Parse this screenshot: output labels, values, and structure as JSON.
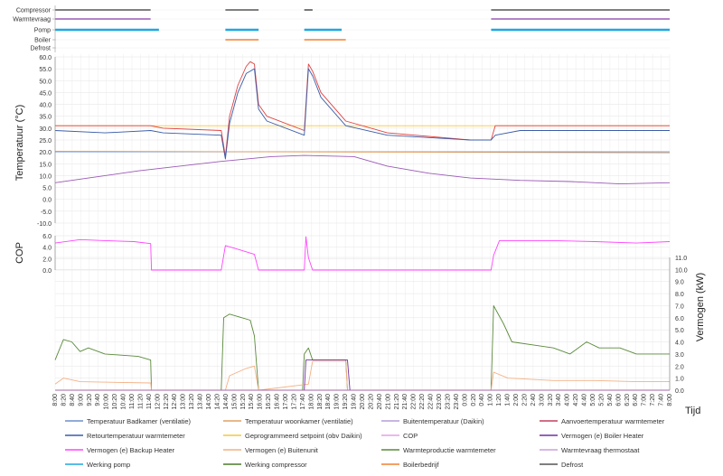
{
  "chart_data": {
    "type": "line",
    "xlabel": "Tijd",
    "x_ticks": [
      "8:00",
      "8:20",
      "8:40",
      "9:00",
      "9:20",
      "9:40",
      "10:00",
      "10:20",
      "10:40",
      "11:00",
      "11:20",
      "11:40",
      "12:00",
      "12:20",
      "12:40",
      "13:00",
      "13:20",
      "13:40",
      "14:00",
      "14:20",
      "14:40",
      "15:00",
      "15:20",
      "15:40",
      "16:00",
      "16:20",
      "16:40",
      "17:00",
      "17:20",
      "17:40",
      "18:00",
      "18:20",
      "18:40",
      "19:00",
      "19:20",
      "19:40",
      "20:00",
      "20:20",
      "20:40",
      "21:00",
      "21:20",
      "21:40",
      "22:00",
      "22:20",
      "22:40",
      "23:00",
      "23:20",
      "23:40",
      "0:00",
      "0:20",
      "0:40",
      "1:00",
      "1:20",
      "1:40",
      "2:00",
      "2:20",
      "2:40",
      "3:00",
      "3:20",
      "3:40",
      "4:00",
      "4:20",
      "4:40",
      "5:00",
      "5:20",
      "5:40",
      "6:00",
      "6:20",
      "6:40",
      "7:00",
      "7:20",
      "7:40",
      "8:00"
    ],
    "status_rows": [
      {
        "name": "Compressor",
        "color": "#555555",
        "on": [
          [
            0,
            115
          ],
          [
            205,
            245
          ],
          [
            300,
            310
          ],
          [
            525,
            740
          ]
        ]
      },
      {
        "name": "Warmtevraag",
        "color": "#9b59b6",
        "on": [
          [
            0,
            115
          ],
          [
            525,
            740
          ]
        ]
      },
      {
        "name": "Pomp",
        "color": "#1fa7e0",
        "on": [
          [
            0,
            125
          ],
          [
            205,
            245
          ],
          [
            300,
            345
          ],
          [
            525,
            740
          ]
        ]
      },
      {
        "name": "Boiler",
        "color": "#f08030",
        "on": [
          [
            205,
            245
          ],
          [
            300,
            350
          ]
        ]
      },
      {
        "name": "Defrost",
        "color": "#333333",
        "on": []
      }
    ],
    "panels": [
      {
        "name": "temperature",
        "ylabel": "Temperatuur (°C)",
        "ylim": [
          -10,
          60
        ],
        "y_ticks": [
          "-10.0",
          "-5.0",
          "0.0",
          "5.0",
          "10.0",
          "15.0",
          "20.0",
          "25.0",
          "30.0",
          "35.0",
          "40.0",
          "45.0",
          "50.0",
          "55.0",
          "60.0"
        ],
        "series": [
          {
            "name": "Geprogrammeerd setpoint (obv Daikin)",
            "color": "#f2c744",
            "points": [
              [
                0,
                31
              ],
              [
                740,
                31
              ]
            ]
          },
          {
            "name": "Temperatuur Badkamer (ventilatie)",
            "color": "#6d8fc9",
            "points": [
              [
                0,
                20
              ],
              [
                740,
                20
              ]
            ]
          },
          {
            "name": "Temperatuur woonkamer (ventilatie)",
            "color": "#e0a060",
            "points": [
              [
                0,
                20.3
              ],
              [
                740,
                19.6
              ]
            ]
          },
          {
            "name": "Aanvoertemperatuur warmtemeter",
            "color": "#e04040",
            "points": [
              [
                0,
                31
              ],
              [
                60,
                31
              ],
              [
                115,
                31
              ],
              [
                130,
                30
              ],
              [
                200,
                29
              ],
              [
                205,
                18
              ],
              [
                210,
                35
              ],
              [
                220,
                48
              ],
              [
                230,
                56
              ],
              [
                235,
                58
              ],
              [
                240,
                57
              ],
              [
                245,
                40
              ],
              [
                255,
                35
              ],
              [
                300,
                29
              ],
              [
                305,
                57
              ],
              [
                310,
                54
              ],
              [
                320,
                45
              ],
              [
                350,
                33
              ],
              [
                400,
                28
              ],
              [
                500,
                25
              ],
              [
                525,
                25
              ],
              [
                530,
                31
              ],
              [
                560,
                31
              ],
              [
                740,
                31
              ]
            ]
          },
          {
            "name": "Retourtemperatuur warmtemeter",
            "color": "#3a5ca8",
            "points": [
              [
                0,
                29
              ],
              [
                60,
                28
              ],
              [
                115,
                29
              ],
              [
                130,
                28
              ],
              [
                200,
                27
              ],
              [
                205,
                17
              ],
              [
                210,
                32
              ],
              [
                220,
                45
              ],
              [
                230,
                53
              ],
              [
                240,
                55
              ],
              [
                245,
                38
              ],
              [
                255,
                33
              ],
              [
                300,
                27
              ],
              [
                305,
                55
              ],
              [
                310,
                52
              ],
              [
                320,
                43
              ],
              [
                350,
                31
              ],
              [
                400,
                27
              ],
              [
                500,
                25
              ],
              [
                525,
                25
              ],
              [
                530,
                27
              ],
              [
                560,
                29
              ],
              [
                740,
                29
              ]
            ]
          },
          {
            "name": "Buitentemperatuur (Daikin)",
            "color": "#9b59b6",
            "points": [
              [
                0,
                7
              ],
              [
                40,
                9
              ],
              [
                100,
                12
              ],
              [
                150,
                14
              ],
              [
                200,
                16
              ],
              [
                260,
                18
              ],
              [
                300,
                18.5
              ],
              [
                360,
                18
              ],
              [
                400,
                14
              ],
              [
                450,
                11
              ],
              [
                500,
                9
              ],
              [
                560,
                8
              ],
              [
                620,
                7.5
              ],
              [
                680,
                6.5
              ],
              [
                740,
                7
              ]
            ]
          }
        ]
      },
      {
        "name": "cop",
        "ylabel": "COP",
        "ylim": [
          0,
          7
        ],
        "y_ticks": [
          "0.0",
          "2.0",
          "4.0",
          "6.0"
        ],
        "series": [
          {
            "name": "COP",
            "color": "#ff44ff",
            "points": [
              [
                0,
                5.5
              ],
              [
                30,
                6.2
              ],
              [
                60,
                6
              ],
              [
                95,
                5.8
              ],
              [
                115,
                5.4
              ],
              [
                116,
                0
              ],
              [
                200,
                0
              ],
              [
                205,
                5
              ],
              [
                215,
                4.5
              ],
              [
                240,
                3.2
              ],
              [
                245,
                0
              ],
              [
                300,
                0
              ],
              [
                302,
                6.8
              ],
              [
                305,
                2.5
              ],
              [
                310,
                0
              ],
              [
                525,
                0
              ],
              [
                528,
                3
              ],
              [
                535,
                6
              ],
              [
                600,
                6
              ],
              [
                650,
                5.8
              ],
              [
                700,
                5.5
              ],
              [
                740,
                5.8
              ]
            ]
          }
        ]
      },
      {
        "name": "power",
        "ylabel": "Vermogen (kW)",
        "ylim": [
          0,
          11
        ],
        "y_ticks": [
          "0.0",
          "1.0",
          "2.0",
          "3.0",
          "4.0",
          "5.0",
          "6.0",
          "7.0",
          "8.0",
          "9.0",
          "10.0",
          "11.0"
        ],
        "series": [
          {
            "name": "Warmteproductie warmtemeter",
            "color": "#5a8a3a",
            "points": [
              [
                0,
                2.5
              ],
              [
                10,
                4.2
              ],
              [
                20,
                4
              ],
              [
                30,
                3.2
              ],
              [
                40,
                3.5
              ],
              [
                60,
                3
              ],
              [
                100,
                2.8
              ],
              [
                115,
                2.5
              ],
              [
                116,
                0
              ],
              [
                200,
                0
              ],
              [
                203,
                6
              ],
              [
                210,
                6.3
              ],
              [
                225,
                6
              ],
              [
                235,
                5.8
              ],
              [
                240,
                4.5
              ],
              [
                245,
                0
              ],
              [
                298,
                0
              ],
              [
                300,
                3
              ],
              [
                305,
                3.5
              ],
              [
                310,
                2.5
              ],
              [
                350,
                2.5
              ],
              [
                352,
                0
              ],
              [
                525,
                0
              ],
              [
                528,
                7
              ],
              [
                540,
                5.5
              ],
              [
                550,
                4
              ],
              [
                600,
                3.5
              ],
              [
                620,
                3
              ],
              [
                640,
                4
              ],
              [
                655,
                3.5
              ],
              [
                680,
                3.5
              ],
              [
                700,
                3
              ],
              [
                740,
                3
              ]
            ]
          },
          {
            "name": "Vermogen (e) Buitenunit",
            "color": "#f4b183",
            "points": [
              [
                0,
                0.5
              ],
              [
                10,
                1
              ],
              [
                30,
                0.7
              ],
              [
                115,
                0.6
              ],
              [
                116,
                0
              ],
              [
                205,
                0
              ],
              [
                210,
                1.2
              ],
              [
                230,
                1.8
              ],
              [
                240,
                2
              ],
              [
                245,
                0
              ],
              [
                305,
                0.5
              ],
              [
                310,
                2.4
              ],
              [
                350,
                2.4
              ],
              [
                352,
                0
              ],
              [
                525,
                0
              ],
              [
                528,
                1.5
              ],
              [
                545,
                1
              ],
              [
                600,
                0.8
              ],
              [
                650,
                0.8
              ],
              [
                700,
                0.7
              ],
              [
                740,
                0.7
              ]
            ]
          },
          {
            "name": "Vermogen (e) Boiler Heater",
            "color": "#7030a0",
            "points": [
              [
                0,
                0
              ],
              [
                300,
                0
              ],
              [
                302,
                2.5
              ],
              [
                352,
                2.5
              ],
              [
                355,
                0
              ],
              [
                740,
                0
              ]
            ]
          },
          {
            "name": "Vermogen (e) Backup Heater",
            "color": "#ff00ff",
            "points": [
              [
                0,
                0
              ],
              [
                740,
                0
              ]
            ]
          }
        ]
      }
    ],
    "legend": [
      {
        "name": "Temperatuur Badkamer (ventilatie)",
        "color": "#6d8fc9"
      },
      {
        "name": "Temperatuur woonkamer (ventilatie)",
        "color": "#e0a060"
      },
      {
        "name": "Buitentemperatuur (Daikin)",
        "color": "#b39ddb"
      },
      {
        "name": "Aanvoertemperatuur warmtemeter",
        "color": "#c04060"
      },
      {
        "name": "Retourtemperatuur warmtemeter",
        "color": "#3a5ca8"
      },
      {
        "name": "Geprogrammeerd setpoint (obv Daikin)",
        "color": "#f2c744"
      },
      {
        "name": "COP",
        "color": "#e6a0e6"
      },
      {
        "name": "Vermogen (e) Boiler Heater",
        "color": "#7030a0"
      },
      {
        "name": "Vermogen (e) Backup Heater",
        "color": "#ff44ff"
      },
      {
        "name": "Vermogen (e) Buitenunit",
        "color": "#f4b183"
      },
      {
        "name": "Warmteproductie warmtemeter",
        "color": "#5a8a3a"
      },
      {
        "name": "Warmtevraag thermostaat",
        "color": "#c9a0dc"
      },
      {
        "name": "Werking pomp",
        "color": "#1fa7e0"
      },
      {
        "name": "Werking compressor",
        "color": "#4a7a2a"
      },
      {
        "name": "Boilerbedrijf",
        "color": "#f08030"
      },
      {
        "name": "Defrost",
        "color": "#555555"
      }
    ]
  }
}
